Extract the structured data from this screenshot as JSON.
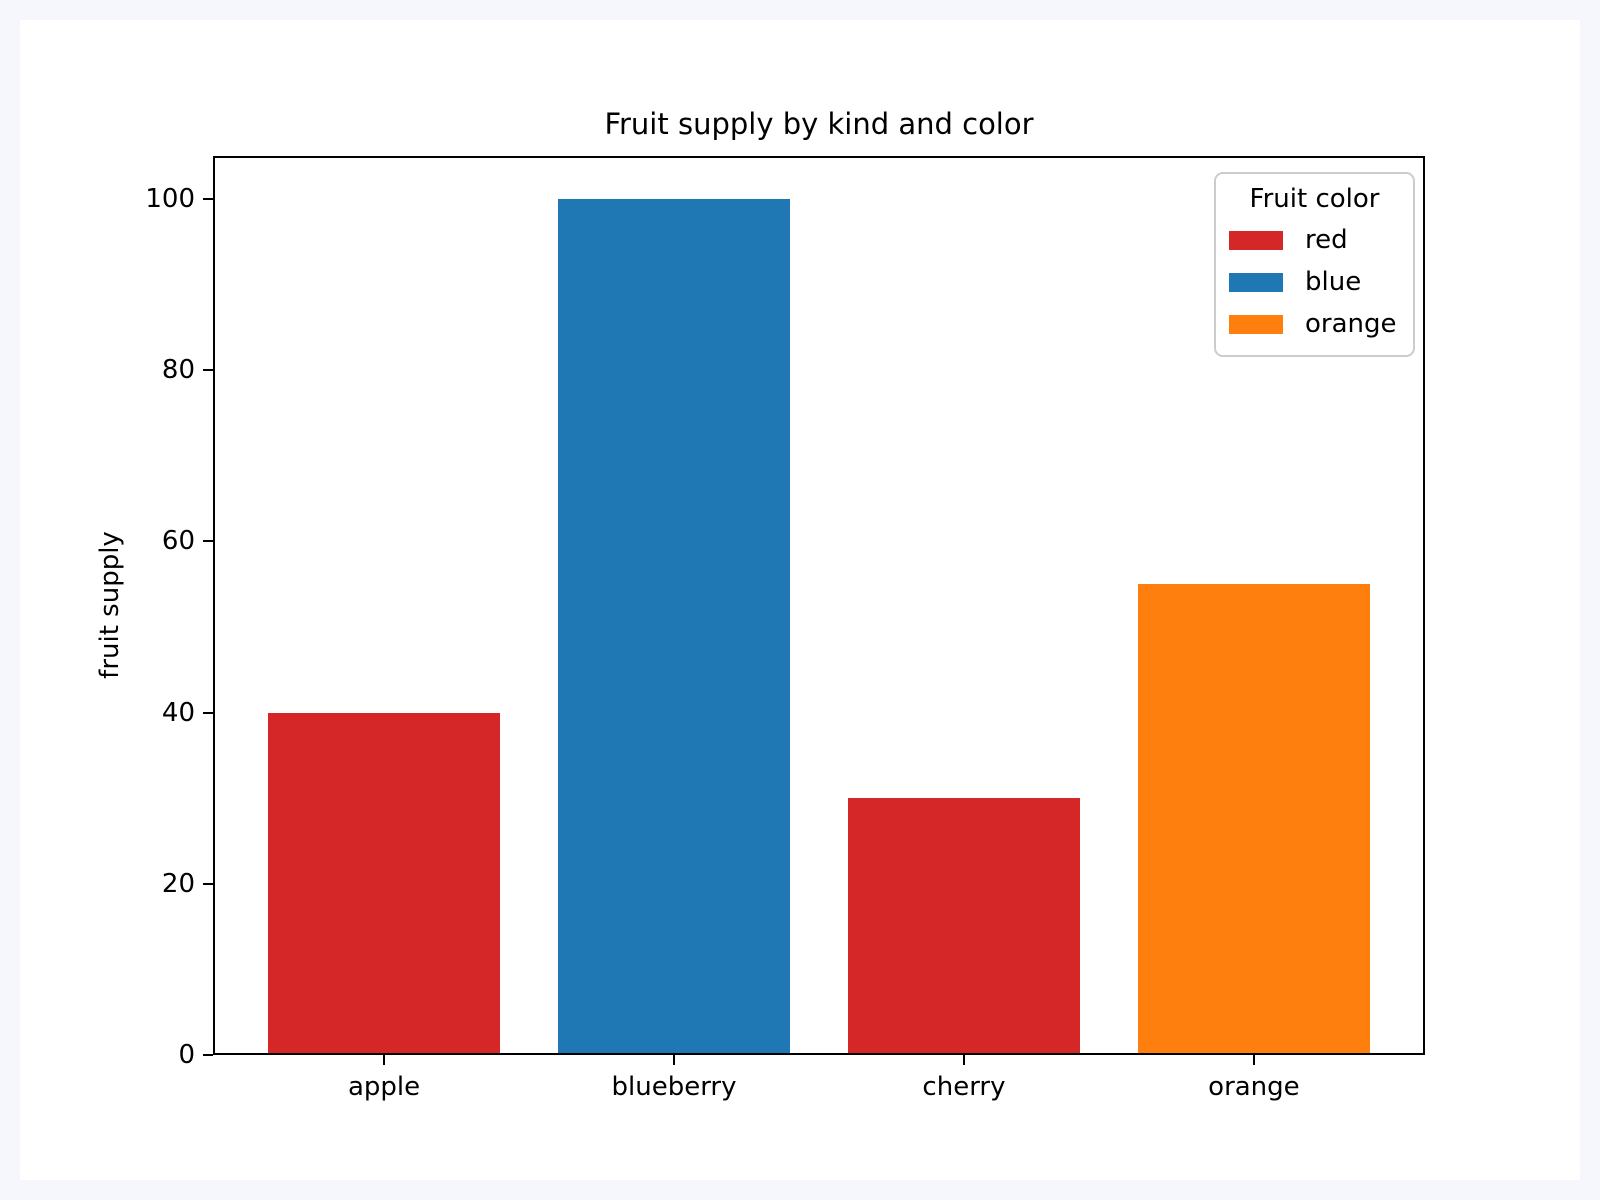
{
  "window": {
    "background_color": "#f6f7fc",
    "figure_background_color": "#ffffff",
    "axis_color": "#000000"
  },
  "chart_data": {
    "type": "bar",
    "title": "Fruit supply by kind and color",
    "xlabel": "",
    "ylabel": "fruit supply",
    "categories": [
      "apple",
      "blueberry",
      "cherry",
      "orange"
    ],
    "values": [
      40,
      100,
      30,
      55
    ],
    "bar_colors": [
      "#d62728",
      "#1f77b4",
      "#d62728",
      "#ff7f0e"
    ],
    "ylim": [
      0,
      105
    ],
    "yticks": [
      0,
      20,
      40,
      60,
      80,
      100
    ],
    "grid": false,
    "bar_width_fraction": 0.8,
    "legend": {
      "title": "Fruit color",
      "position": "upper right",
      "entries": [
        {
          "label": "red",
          "color": "#d62728"
        },
        {
          "label": "blue",
          "color": "#1f77b4"
        },
        {
          "label": "orange",
          "color": "#ff7f0e"
        }
      ]
    }
  }
}
